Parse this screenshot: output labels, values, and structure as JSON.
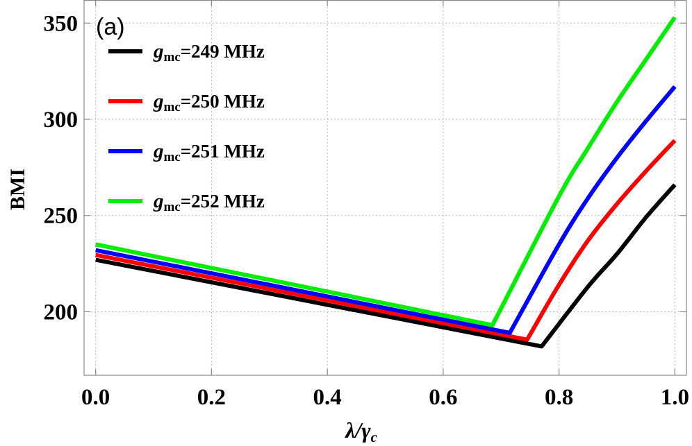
{
  "chart_data": {
    "type": "line",
    "panel_label": "(a)",
    "xlabel": {
      "main": "λ/",
      "gamma": "γ",
      "sub": "c"
    },
    "ylabel": "BMI",
    "xlim": [
      -0.02,
      1.02
    ],
    "ylim": [
      167,
      362
    ],
    "x_ticks": [
      0.0,
      0.2,
      0.4,
      0.6,
      0.8,
      1.0
    ],
    "x_tick_labels": [
      "0.0",
      "0.2",
      "0.4",
      "0.6",
      "0.8",
      "1.0"
    ],
    "y_ticks": [
      200,
      250,
      300,
      350
    ],
    "y_tick_labels": [
      "200",
      "250",
      "300",
      "350"
    ],
    "grid": true,
    "legend_position": "top-left",
    "series": [
      {
        "name": {
          "sym": "g",
          "sub": "mc",
          "rest": "=249 MHz"
        },
        "color": "#000000",
        "points": [
          [
            0.0,
            227
          ],
          [
            0.77,
            182
          ],
          [
            0.85,
            213
          ],
          [
            0.9,
            230
          ],
          [
            0.95,
            249
          ],
          [
            1.0,
            266
          ]
        ]
      },
      {
        "name": {
          "sym": "g",
          "sub": "mc",
          "rest": "=250 MHz"
        },
        "color": "#ff0000",
        "points": [
          [
            0.0,
            229.5
          ],
          [
            0.745,
            185.5
          ],
          [
            0.8,
            214
          ],
          [
            0.85,
            237
          ],
          [
            0.9,
            256
          ],
          [
            0.95,
            273
          ],
          [
            1.0,
            289
          ]
        ]
      },
      {
        "name": {
          "sym": "g",
          "sub": "mc",
          "rest": "=251 MHz"
        },
        "color": "#0000ff",
        "points": [
          [
            0.0,
            232
          ],
          [
            0.715,
            189
          ],
          [
            0.8,
            235
          ],
          [
            0.85,
            259
          ],
          [
            0.9,
            280
          ],
          [
            0.95,
            299
          ],
          [
            1.0,
            317
          ]
        ]
      },
      {
        "name": {
          "sym": "g",
          "sub": "mc",
          "rest": "=252 MHz"
        },
        "color": "#00ee00",
        "points": [
          [
            0.0,
            235
          ],
          [
            0.685,
            193
          ],
          [
            0.8,
            260
          ],
          [
            0.85,
            285
          ],
          [
            0.9,
            309
          ],
          [
            0.95,
            331
          ],
          [
            1.0,
            353
          ]
        ]
      }
    ]
  }
}
